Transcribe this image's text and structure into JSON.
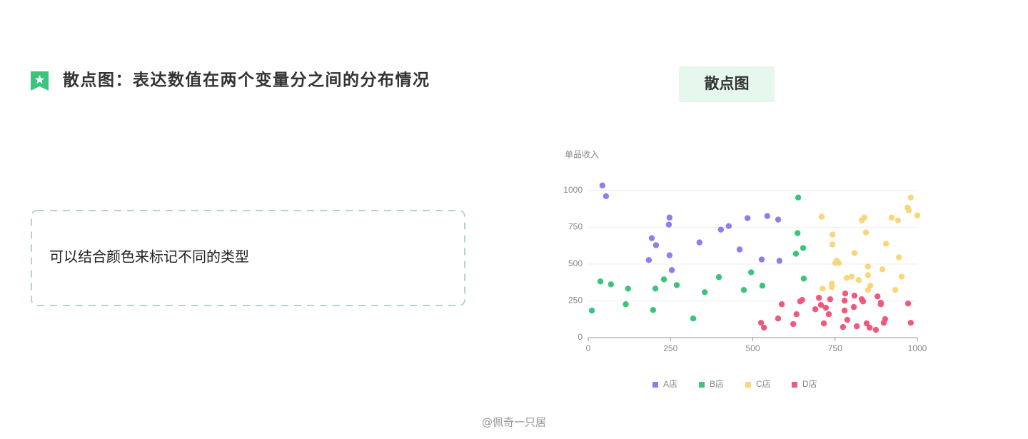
{
  "header": {
    "title": "散点图：表达数值在两个变量分之间的分布情况"
  },
  "description": "可以结合颜色来标记不同的类型",
  "tab": {
    "label": "散点图"
  },
  "footer": "@佩奇一只居",
  "chart_data": {
    "type": "scatter",
    "y_label": "单品收入",
    "xlim": [
      0,
      1000
    ],
    "xticks": [
      0,
      250,
      500,
      750,
      1000
    ],
    "ylim": [
      0,
      1050
    ],
    "yticks": [
      0,
      250,
      500,
      750,
      1000
    ],
    "grid": true,
    "legend": "bottom",
    "series": [
      {
        "name": "A店",
        "color": "#8b7ff0",
        "x": [
          43,
          54,
          247,
          245,
          193,
          206,
          247,
          184,
          254,
          338,
          403,
          427,
          460,
          484,
          544,
          527,
          577,
          581
        ],
        "values": [
          1034,
          961,
          816,
          768,
          676,
          628,
          560,
          527,
          459,
          647,
          734,
          758,
          599,
          812,
          826,
          531,
          802,
          522
        ]
      },
      {
        "name": "B店",
        "color": "#3cc47c",
        "x": [
          11,
          37,
          69,
          114,
          121,
          197,
          204,
          230,
          269,
          319,
          354,
          397,
          473,
          495,
          529,
          638,
          636,
          631,
          653,
          655
        ],
        "values": [
          184,
          382,
          362,
          227,
          333,
          188,
          333,
          396,
          357,
          130,
          309,
          411,
          324,
          444,
          353,
          952,
          710,
          570,
          609,
          401
        ]
      },
      {
        "name": "C店",
        "color": "#fad67a",
        "x": [
          709,
          742,
          742,
          755,
          751,
          761,
          712,
          740,
          740,
          785,
          800,
          809,
          822,
          831,
          839,
          844,
          850,
          850,
          857,
          850,
          894,
          905,
          922,
          941,
          944,
          952,
          933,
          970,
          974,
          980,
          1000
        ],
        "values": [
          821,
          700,
          633,
          522,
          507,
          507,
          333,
          367,
          343,
          406,
          415,
          575,
          391,
          797,
          816,
          715,
          483,
          425,
          353,
          324,
          464,
          638,
          816,
          797,
          546,
          415,
          324,
          884,
          865,
          952,
          831
        ]
      },
      {
        "name": "D店",
        "color": "#ee5a7c",
        "x": [
          525,
          534,
          577,
          588,
          623,
          633,
          644,
          650,
          690,
          701,
          707,
          716,
          722,
          731,
          735,
          774,
          779,
          779,
          781,
          787,
          807,
          809,
          816,
          831,
          835,
          846,
          855,
          874,
          879,
          889,
          889,
          898,
          902,
          972,
          980
        ],
        "values": [
          101,
          68,
          130,
          227,
          92,
          159,
          246,
          256,
          193,
          271,
          222,
          97,
          203,
          159,
          261,
          72,
          184,
          251,
          300,
          121,
          208,
          285,
          77,
          261,
          246,
          97,
          68,
          53,
          280,
          237,
          227,
          101,
          126,
          232,
          101
        ]
      }
    ]
  }
}
